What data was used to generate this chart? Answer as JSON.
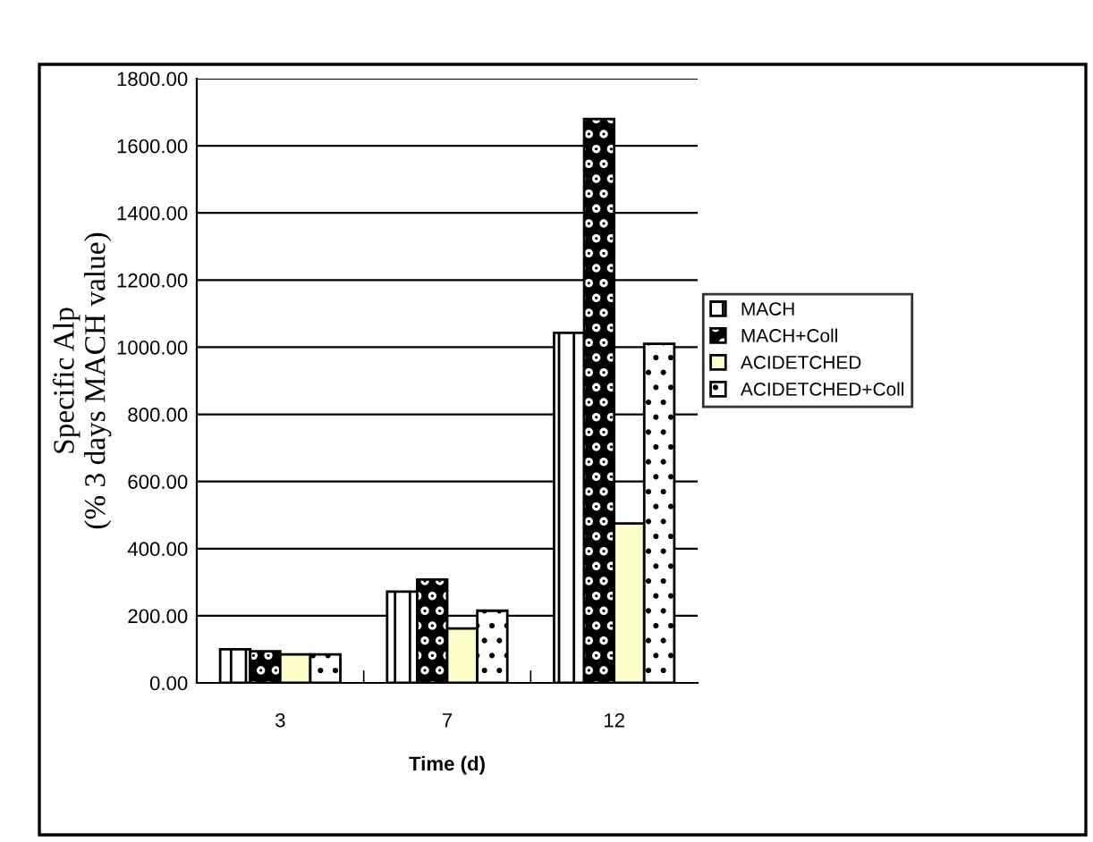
{
  "chart_data": {
    "type": "bar",
    "xlabel": "Time (d)",
    "ylabel": "Specific Alp\n(% 3 days MACH value)",
    "categories": [
      "3",
      "7",
      "12"
    ],
    "series": [
      {
        "name": "MACH",
        "color": "#000000",
        "values": [
          100,
          272,
          1043
        ]
      },
      {
        "name": "MACH+Coll",
        "color": "#000000",
        "values": [
          94,
          308,
          1680
        ]
      },
      {
        "name": "ACIDETCHED",
        "color": "#ffffcc",
        "values": [
          85,
          162,
          475
        ]
      },
      {
        "name": "ACIDETCHED+Coll",
        "color": "#000000",
        "values": [
          85,
          215,
          1010
        ]
      }
    ],
    "ylim": [
      0,
      1800
    ],
    "yticks": [
      {
        "value": 0,
        "label": "0.00"
      },
      {
        "value": 200,
        "label": "200.00"
      },
      {
        "value": 400,
        "label": "400.00"
      },
      {
        "value": 600,
        "label": "600.00"
      },
      {
        "value": 800,
        "label": "800.00"
      },
      {
        "value": 1000,
        "label": "1000.00"
      },
      {
        "value": 1200,
        "label": "1200.00"
      },
      {
        "value": 1400,
        "label": "1400.00"
      },
      {
        "value": 1600,
        "label": "1600.00"
      },
      {
        "value": 1800,
        "label": "1800.00"
      }
    ],
    "grid": "y",
    "legend": "right"
  }
}
